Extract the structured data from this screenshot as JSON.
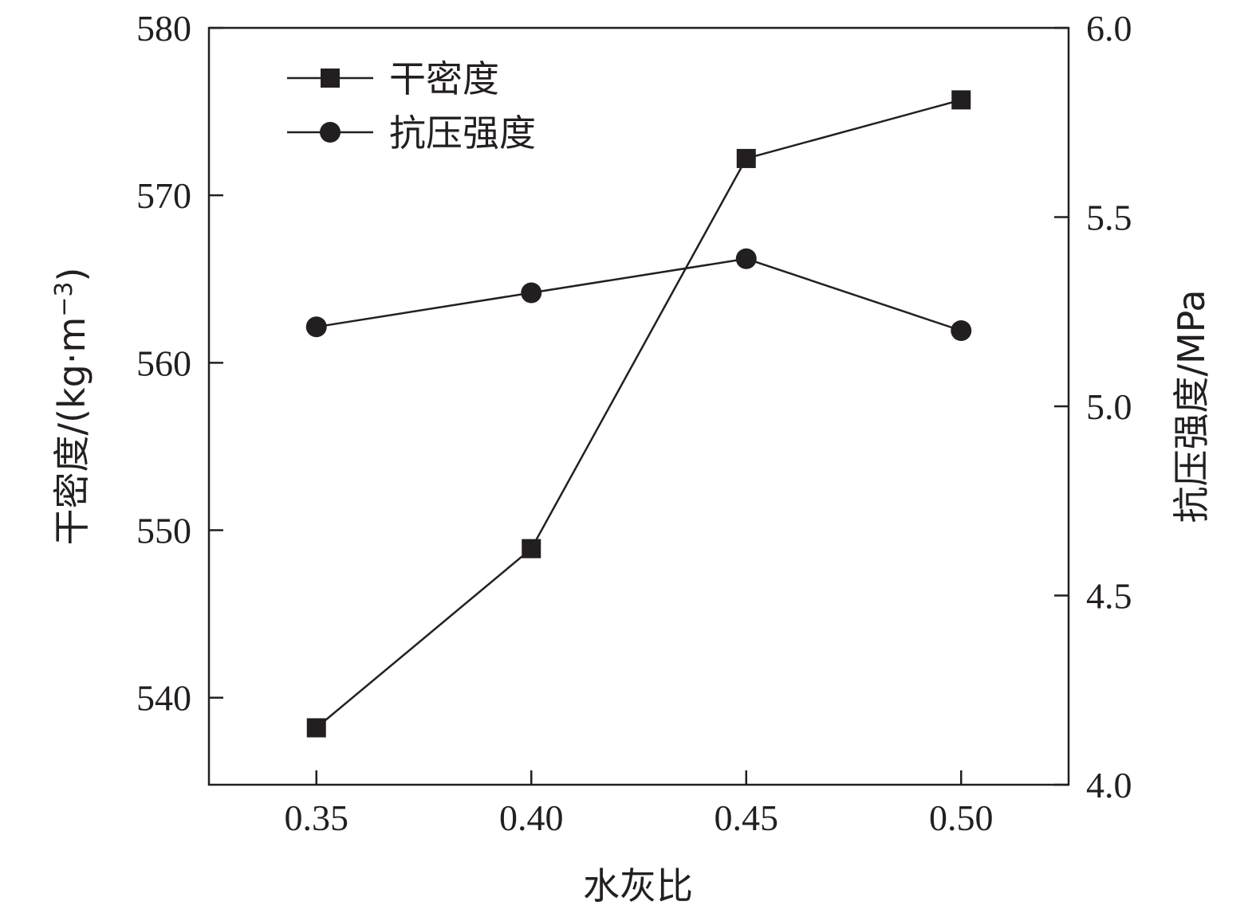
{
  "chart_data": {
    "type": "line",
    "x": [
      0.35,
      0.4,
      0.45,
      0.5
    ],
    "x_tick_labels": [
      "0.35",
      "0.40",
      "0.45",
      "0.50"
    ],
    "xlim": [
      0.325,
      0.525
    ],
    "xlabel": "水灰比",
    "left_axis": {
      "label_main": "干密度/(kg·m",
      "label_sup": "−3",
      "label_close": ")",
      "ylim": [
        534.8,
        580
      ],
      "ticks": [
        540,
        550,
        560,
        570,
        580
      ],
      "tick_labels": [
        "540",
        "550",
        "560",
        "570",
        "580"
      ]
    },
    "right_axis": {
      "label": "抗压强度/MPa",
      "ylim": [
        4.0,
        6.0
      ],
      "ticks": [
        4.0,
        4.5,
        5.0,
        5.5,
        6.0
      ],
      "tick_labels": [
        "4.0",
        "4.5",
        "5.0",
        "5.5",
        "6.0"
      ]
    },
    "series": [
      {
        "name": "干密度",
        "axis": "left",
        "marker": "square",
        "values": [
          538.2,
          548.9,
          572.2,
          575.7
        ]
      },
      {
        "name": "抗压强度",
        "axis": "right",
        "marker": "circle",
        "values": [
          5.21,
          5.3,
          5.39,
          5.2
        ]
      }
    ],
    "legend_position": "top-left",
    "grid": false,
    "colors": {
      "line": "#231f20",
      "marker": "#231f20",
      "axis": "#231f20"
    }
  }
}
